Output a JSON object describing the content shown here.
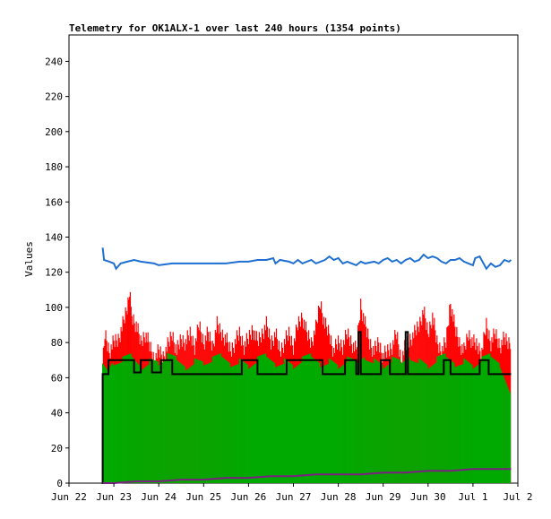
{
  "chart_data": {
    "type": "line",
    "title": "Telemetry for OK1ALX-1 over last 240 hours (1354 points)",
    "ylabel": "Values",
    "xlabel": "",
    "ylim": [
      0,
      255
    ],
    "xlim": [
      "Jun 22",
      "Jul 2"
    ],
    "x_ticks": [
      "Jun 22",
      "Jun 23",
      "Jun 24",
      "Jun 25",
      "Jun 26",
      "Jun 27",
      "Jun 28",
      "Jun 29",
      "Jun 30",
      "Jul 1",
      "Jul 2"
    ],
    "y_ticks": [
      0,
      20,
      40,
      60,
      80,
      100,
      120,
      140,
      160,
      180,
      200,
      220,
      240
    ],
    "grid": false,
    "legend": "none",
    "series": [
      {
        "color": "#ff0000",
        "style": "bars",
        "points": [
          [
            0.75,
            70
          ],
          [
            0.8,
            85
          ],
          [
            0.9,
            75
          ],
          [
            1.0,
            80
          ],
          [
            1.1,
            82
          ],
          [
            1.2,
            90
          ],
          [
            1.3,
            100
          ],
          [
            1.35,
            108
          ],
          [
            1.4,
            95
          ],
          [
            1.5,
            90
          ],
          [
            1.6,
            80
          ],
          [
            1.7,
            85
          ],
          [
            1.8,
            78
          ],
          [
            1.9,
            70
          ],
          [
            2.0,
            75
          ],
          [
            2.1,
            72
          ],
          [
            2.2,
            78
          ],
          [
            2.3,
            85
          ],
          [
            2.4,
            75
          ],
          [
            2.5,
            82
          ],
          [
            2.6,
            80
          ],
          [
            2.7,
            85
          ],
          [
            2.8,
            78
          ],
          [
            2.9,
            90
          ],
          [
            3.0,
            80
          ],
          [
            3.1,
            85
          ],
          [
            3.2,
            78
          ],
          [
            3.3,
            90
          ],
          [
            3.4,
            85
          ],
          [
            3.5,
            82
          ],
          [
            3.6,
            75
          ],
          [
            3.7,
            80
          ],
          [
            3.8,
            85
          ],
          [
            3.9,
            78
          ],
          [
            4.0,
            82
          ],
          [
            4.1,
            88
          ],
          [
            4.2,
            80
          ],
          [
            4.3,
            85
          ],
          [
            4.4,
            90
          ],
          [
            4.5,
            80
          ],
          [
            4.6,
            85
          ],
          [
            4.7,
            75
          ],
          [
            4.8,
            80
          ],
          [
            4.9,
            85
          ],
          [
            5.0,
            78
          ],
          [
            5.1,
            90
          ],
          [
            5.2,
            95
          ],
          [
            5.3,
            85
          ],
          [
            5.4,
            80
          ],
          [
            5.5,
            88
          ],
          [
            5.6,
            103
          ],
          [
            5.7,
            90
          ],
          [
            5.8,
            85
          ],
          [
            5.9,
            75
          ],
          [
            6.0,
            80
          ],
          [
            6.1,
            78
          ],
          [
            6.2,
            85
          ],
          [
            6.3,
            80
          ],
          [
            6.4,
            75
          ],
          [
            6.5,
            102
          ],
          [
            6.6,
            90
          ],
          [
            6.7,
            80
          ],
          [
            6.8,
            75
          ],
          [
            6.9,
            80
          ],
          [
            7.0,
            72
          ],
          [
            7.1,
            75
          ],
          [
            7.2,
            78
          ],
          [
            7.3,
            85
          ],
          [
            7.4,
            70
          ],
          [
            7.5,
            78
          ],
          [
            7.6,
            82
          ],
          [
            7.7,
            85
          ],
          [
            7.8,
            90
          ],
          [
            7.9,
            98
          ],
          [
            8.0,
            85
          ],
          [
            8.1,
            95
          ],
          [
            8.2,
            80
          ],
          [
            8.3,
            75
          ],
          [
            8.4,
            80
          ],
          [
            8.5,
            103
          ],
          [
            8.6,
            88
          ],
          [
            8.7,
            80
          ],
          [
            8.8,
            75
          ],
          [
            8.9,
            85
          ],
          [
            9.0,
            80
          ],
          [
            9.1,
            78
          ],
          [
            9.2,
            75
          ],
          [
            9.3,
            90
          ],
          [
            9.4,
            80
          ],
          [
            9.5,
            85
          ],
          [
            9.6,
            78
          ],
          [
            9.7,
            82
          ],
          [
            9.8,
            80
          ],
          [
            9.85,
            82
          ]
        ]
      },
      {
        "color": "#00aa00",
        "style": "bars",
        "points": [
          [
            0.75,
            70
          ],
          [
            0.9,
            65
          ],
          [
            1.0,
            68
          ],
          [
            1.2,
            70
          ],
          [
            1.4,
            72
          ],
          [
            1.6,
            66
          ],
          [
            1.8,
            70
          ],
          [
            2.0,
            68
          ],
          [
            2.2,
            72
          ],
          [
            2.4,
            70
          ],
          [
            2.6,
            66
          ],
          [
            2.8,
            70
          ],
          [
            3.0,
            68
          ],
          [
            3.2,
            70
          ],
          [
            3.4,
            72
          ],
          [
            3.6,
            68
          ],
          [
            3.8,
            70
          ],
          [
            4.0,
            66
          ],
          [
            4.2,
            70
          ],
          [
            4.4,
            72
          ],
          [
            4.6,
            68
          ],
          [
            4.8,
            70
          ],
          [
            5.0,
            66
          ],
          [
            5.2,
            70
          ],
          [
            5.4,
            72
          ],
          [
            5.6,
            68
          ],
          [
            5.8,
            70
          ],
          [
            6.0,
            66
          ],
          [
            6.2,
            70
          ],
          [
            6.4,
            68
          ],
          [
            6.6,
            72
          ],
          [
            6.8,
            70
          ],
          [
            7.0,
            66
          ],
          [
            7.2,
            70
          ],
          [
            7.4,
            68
          ],
          [
            7.6,
            72
          ],
          [
            7.8,
            70
          ],
          [
            8.0,
            66
          ],
          [
            8.2,
            70
          ],
          [
            8.4,
            72
          ],
          [
            8.6,
            68
          ],
          [
            8.8,
            70
          ],
          [
            9.0,
            66
          ],
          [
            9.2,
            70
          ],
          [
            9.4,
            72
          ],
          [
            9.6,
            68
          ],
          [
            9.85,
            52
          ]
        ]
      },
      {
        "color": "#1e6fd0",
        "style": "line",
        "points": [
          [
            0.75,
            134
          ],
          [
            0.78,
            127
          ],
          [
            0.9,
            126
          ],
          [
            1.0,
            125
          ],
          [
            1.05,
            122
          ],
          [
            1.15,
            125
          ],
          [
            1.3,
            126
          ],
          [
            1.45,
            127
          ],
          [
            1.6,
            126
          ],
          [
            1.9,
            125
          ],
          [
            2.0,
            124
          ],
          [
            2.3,
            125
          ],
          [
            2.6,
            125
          ],
          [
            2.9,
            125
          ],
          [
            3.2,
            125
          ],
          [
            3.5,
            125
          ],
          [
            3.8,
            126
          ],
          [
            4.0,
            126
          ],
          [
            4.2,
            127
          ],
          [
            4.4,
            127
          ],
          [
            4.55,
            128
          ],
          [
            4.6,
            125
          ],
          [
            4.7,
            127
          ],
          [
            4.9,
            126
          ],
          [
            5.0,
            125
          ],
          [
            5.1,
            127
          ],
          [
            5.2,
            125
          ],
          [
            5.4,
            127
          ],
          [
            5.5,
            125
          ],
          [
            5.7,
            127
          ],
          [
            5.8,
            129
          ],
          [
            5.9,
            127
          ],
          [
            6.0,
            128
          ],
          [
            6.1,
            125
          ],
          [
            6.2,
            126
          ],
          [
            6.3,
            125
          ],
          [
            6.4,
            124
          ],
          [
            6.5,
            126
          ],
          [
            6.6,
            125
          ],
          [
            6.8,
            126
          ],
          [
            6.9,
            125
          ],
          [
            7.0,
            127
          ],
          [
            7.1,
            128
          ],
          [
            7.2,
            126
          ],
          [
            7.3,
            127
          ],
          [
            7.4,
            125
          ],
          [
            7.5,
            127
          ],
          [
            7.6,
            128
          ],
          [
            7.7,
            126
          ],
          [
            7.8,
            127
          ],
          [
            7.9,
            130
          ],
          [
            8.0,
            128
          ],
          [
            8.1,
            129
          ],
          [
            8.2,
            128
          ],
          [
            8.3,
            126
          ],
          [
            8.4,
            125
          ],
          [
            8.5,
            127
          ],
          [
            8.6,
            127
          ],
          [
            8.7,
            128
          ],
          [
            8.8,
            126
          ],
          [
            8.9,
            125
          ],
          [
            9.0,
            124
          ],
          [
            9.05,
            128
          ],
          [
            9.15,
            129
          ],
          [
            9.3,
            122
          ],
          [
            9.4,
            125
          ],
          [
            9.5,
            123
          ],
          [
            9.6,
            124
          ],
          [
            9.7,
            127
          ],
          [
            9.8,
            126
          ],
          [
            9.85,
            127
          ]
        ]
      },
      {
        "color": "#000000",
        "style": "step",
        "points": [
          [
            0.73,
            0
          ],
          [
            0.75,
            62
          ],
          [
            0.85,
            62
          ],
          [
            0.88,
            70
          ],
          [
            1.4,
            70
          ],
          [
            1.45,
            63
          ],
          [
            1.55,
            63
          ],
          [
            1.6,
            70
          ],
          [
            1.8,
            70
          ],
          [
            1.85,
            63
          ],
          [
            2.0,
            63
          ],
          [
            2.05,
            70
          ],
          [
            2.25,
            70
          ],
          [
            2.3,
            62
          ],
          [
            3.8,
            62
          ],
          [
            3.85,
            70
          ],
          [
            4.15,
            70
          ],
          [
            4.2,
            62
          ],
          [
            4.8,
            62
          ],
          [
            4.85,
            70
          ],
          [
            5.6,
            70
          ],
          [
            5.65,
            62
          ],
          [
            6.1,
            62
          ],
          [
            6.15,
            70
          ],
          [
            6.35,
            70
          ],
          [
            6.4,
            62
          ],
          [
            6.45,
            86
          ],
          [
            6.5,
            62
          ],
          [
            6.9,
            62
          ],
          [
            6.95,
            70
          ],
          [
            7.1,
            70
          ],
          [
            7.15,
            62
          ],
          [
            7.45,
            62
          ],
          [
            7.5,
            86
          ],
          [
            7.55,
            62
          ],
          [
            8.3,
            62
          ],
          [
            8.35,
            70
          ],
          [
            8.45,
            70
          ],
          [
            8.5,
            62
          ],
          [
            9.1,
            62
          ],
          [
            9.15,
            70
          ],
          [
            9.3,
            70
          ],
          [
            9.35,
            62
          ],
          [
            9.85,
            62
          ]
        ]
      },
      {
        "color": "#7a2080",
        "style": "line",
        "points": [
          [
            0.75,
            0
          ],
          [
            1.0,
            0
          ],
          [
            1.5,
            1
          ],
          [
            2.0,
            1
          ],
          [
            2.5,
            2
          ],
          [
            3.0,
            2
          ],
          [
            3.5,
            3
          ],
          [
            4.0,
            3
          ],
          [
            4.5,
            4
          ],
          [
            5.0,
            4
          ],
          [
            5.5,
            5
          ],
          [
            6.0,
            5
          ],
          [
            6.5,
            5
          ],
          [
            7.0,
            6
          ],
          [
            7.5,
            6
          ],
          [
            8.0,
            7
          ],
          [
            8.5,
            7
          ],
          [
            9.0,
            8
          ],
          [
            9.5,
            8
          ],
          [
            9.85,
            8
          ]
        ]
      }
    ]
  }
}
